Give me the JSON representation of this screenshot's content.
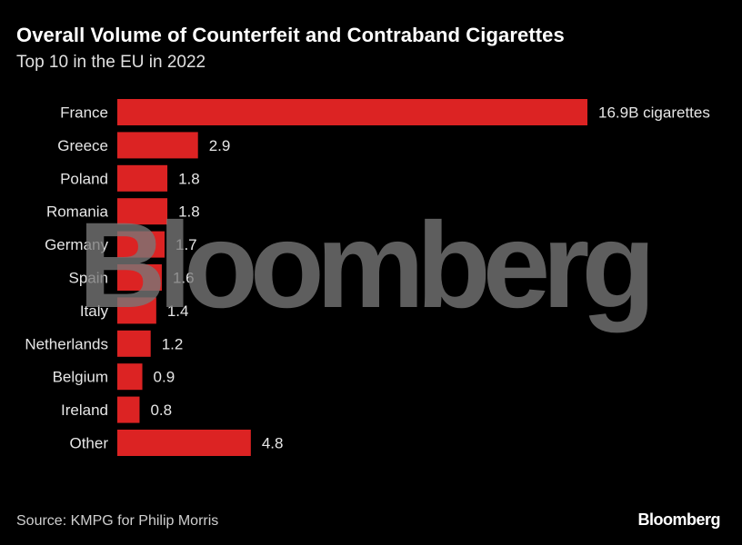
{
  "header": {
    "title": "Overall Volume of Counterfeit and Contraband Cigarettes",
    "subtitle": "Top 10 in the EU in 2022"
  },
  "footer": {
    "source": "Source: KMPG for Philip Morris",
    "logo": "Bloomberg"
  },
  "watermark": "Bloomberg",
  "colors": {
    "bar": "#dc2323",
    "background": "#000000"
  },
  "chart_data": {
    "type": "bar",
    "orientation": "horizontal",
    "title": "Overall Volume of Counterfeit and Contraband Cigarettes",
    "subtitle": "Top 10 in the EU in 2022",
    "categories": [
      "France",
      "Greece",
      "Poland",
      "Romania",
      "Germany",
      "Spain",
      "Italy",
      "Netherlands",
      "Belgium",
      "Ireland",
      "Other"
    ],
    "values": [
      16.9,
      2.9,
      1.8,
      1.8,
      1.7,
      1.6,
      1.4,
      1.2,
      0.9,
      0.8,
      4.8
    ],
    "value_labels": [
      "16.9B cigarettes",
      "2.9",
      "1.8",
      "1.8",
      "1.7",
      "1.6",
      "1.4",
      "1.2",
      "0.9",
      "0.8",
      "4.8"
    ],
    "xlim": [
      0,
      16.9
    ],
    "grid": false,
    "legend": "none"
  }
}
